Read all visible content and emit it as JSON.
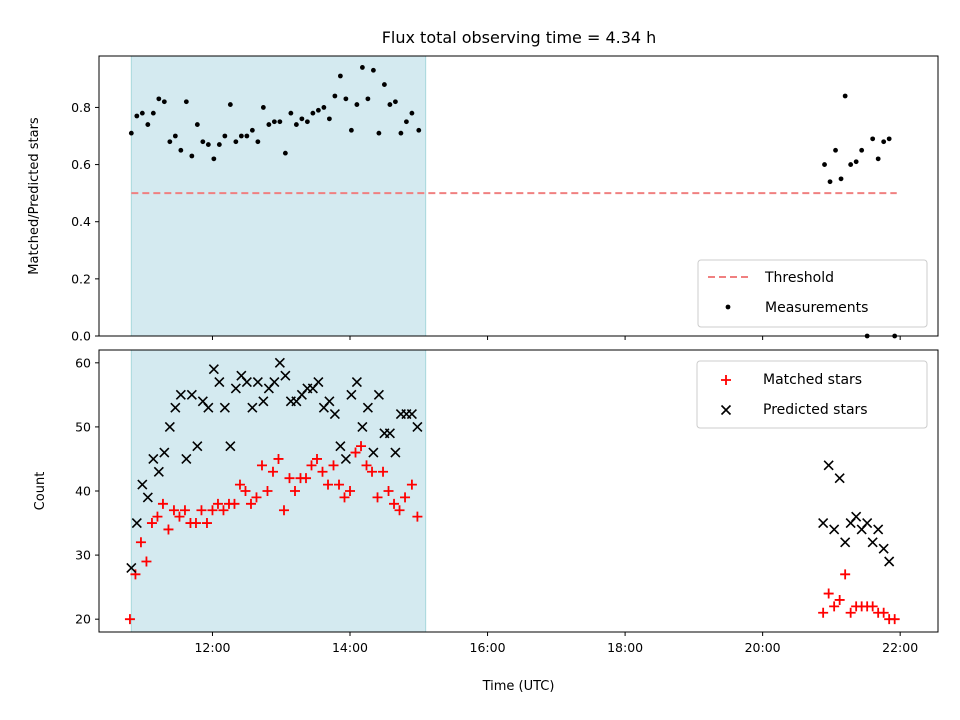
{
  "chart_data": [
    {
      "type": "scatter",
      "title": "Flux total observing time = 4.34 h",
      "xlabel": "",
      "ylabel": "Matched/Predicted stars",
      "xlim": [
        10.35,
        22.55
      ],
      "ylim": [
        0.0,
        0.98
      ],
      "yticks": [
        0.0,
        0.2,
        0.4,
        0.6,
        0.8
      ],
      "ytick_labels": [
        "0.0",
        "0.2",
        "0.4",
        "0.6",
        "0.8"
      ],
      "shaded_x_range": [
        10.82,
        15.1
      ],
      "shade_color": "#d4eaf0",
      "legend_placement": "lower right",
      "threshold": {
        "name": "Threshold",
        "value": 0.5,
        "x": [
          10.82,
          21.95
        ],
        "color": "#f08080",
        "style": "dashed"
      },
      "series": [
        {
          "name": "Measurements",
          "color": "#000000",
          "marker": "dot",
          "points": [
            [
              10.82,
              0.71
            ],
            [
              10.9,
              0.77
            ],
            [
              10.98,
              0.78
            ],
            [
              11.06,
              0.74
            ],
            [
              11.14,
              0.78
            ],
            [
              11.22,
              0.83
            ],
            [
              11.3,
              0.82
            ],
            [
              11.38,
              0.68
            ],
            [
              11.46,
              0.7
            ],
            [
              11.54,
              0.65
            ],
            [
              11.62,
              0.82
            ],
            [
              11.7,
              0.63
            ],
            [
              11.78,
              0.74
            ],
            [
              11.86,
              0.68
            ],
            [
              11.94,
              0.67
            ],
            [
              12.02,
              0.62
            ],
            [
              12.1,
              0.67
            ],
            [
              12.18,
              0.7
            ],
            [
              12.26,
              0.81
            ],
            [
              12.34,
              0.68
            ],
            [
              12.42,
              0.7
            ],
            [
              12.5,
              0.7
            ],
            [
              12.58,
              0.72
            ],
            [
              12.66,
              0.68
            ],
            [
              12.74,
              0.8
            ],
            [
              12.82,
              0.74
            ],
            [
              12.9,
              0.75
            ],
            [
              12.98,
              0.75
            ],
            [
              13.06,
              0.64
            ],
            [
              13.14,
              0.78
            ],
            [
              13.22,
              0.74
            ],
            [
              13.3,
              0.76
            ],
            [
              13.38,
              0.75
            ],
            [
              13.46,
              0.78
            ],
            [
              13.54,
              0.79
            ],
            [
              13.62,
              0.8
            ],
            [
              13.7,
              0.76
            ],
            [
              13.78,
              0.84
            ],
            [
              13.86,
              0.91
            ],
            [
              13.94,
              0.83
            ],
            [
              14.02,
              0.72
            ],
            [
              14.1,
              0.81
            ],
            [
              14.18,
              0.94
            ],
            [
              14.26,
              0.83
            ],
            [
              14.34,
              0.93
            ],
            [
              14.42,
              0.71
            ],
            [
              14.5,
              0.88
            ],
            [
              14.58,
              0.81
            ],
            [
              14.66,
              0.82
            ],
            [
              14.74,
              0.71
            ],
            [
              14.82,
              0.75
            ],
            [
              14.9,
              0.78
            ],
            [
              15.0,
              0.72
            ],
            [
              20.9,
              0.6
            ],
            [
              20.98,
              0.54
            ],
            [
              21.06,
              0.65
            ],
            [
              21.14,
              0.55
            ],
            [
              21.2,
              0.84
            ],
            [
              21.28,
              0.6
            ],
            [
              21.36,
              0.61
            ],
            [
              21.44,
              0.65
            ],
            [
              21.52,
              0.0
            ],
            [
              21.6,
              0.69
            ],
            [
              21.68,
              0.62
            ],
            [
              21.76,
              0.68
            ],
            [
              21.84,
              0.69
            ],
            [
              21.92,
              0.0
            ]
          ]
        }
      ]
    },
    {
      "type": "scatter",
      "title": "",
      "xlabel": "Time (UTC)",
      "ylabel": "Count",
      "xlim": [
        10.35,
        22.55
      ],
      "ylim": [
        18,
        62
      ],
      "yticks": [
        20,
        30,
        40,
        50,
        60
      ],
      "ytick_labels": [
        "20",
        "30",
        "40",
        "50",
        "60"
      ],
      "xticks": [
        12,
        14,
        16,
        18,
        20,
        22
      ],
      "xtick_labels": [
        "12:00",
        "14:00",
        "16:00",
        "18:00",
        "20:00",
        "22:00"
      ],
      "shaded_x_range": [
        10.82,
        15.1
      ],
      "shade_color": "#d4eaf0",
      "legend_placement": "upper right",
      "series": [
        {
          "name": "Matched stars",
          "color": "#ff0000",
          "marker": "plus",
          "points": [
            [
              10.8,
              20
            ],
            [
              10.88,
              27
            ],
            [
              10.96,
              32
            ],
            [
              11.04,
              29
            ],
            [
              11.12,
              35
            ],
            [
              11.2,
              36
            ],
            [
              11.28,
              38
            ],
            [
              11.36,
              34
            ],
            [
              11.44,
              37
            ],
            [
              11.52,
              36
            ],
            [
              11.6,
              37
            ],
            [
              11.68,
              35
            ],
            [
              11.76,
              35
            ],
            [
              11.84,
              37
            ],
            [
              11.92,
              35
            ],
            [
              12.0,
              37
            ],
            [
              12.08,
              38
            ],
            [
              12.16,
              37
            ],
            [
              12.24,
              38
            ],
            [
              12.32,
              38
            ],
            [
              12.4,
              41
            ],
            [
              12.48,
              40
            ],
            [
              12.56,
              38
            ],
            [
              12.64,
              39
            ],
            [
              12.72,
              44
            ],
            [
              12.8,
              40
            ],
            [
              12.88,
              43
            ],
            [
              12.96,
              45
            ],
            [
              13.04,
              37
            ],
            [
              13.12,
              42
            ],
            [
              13.2,
              40
            ],
            [
              13.28,
              42
            ],
            [
              13.36,
              42
            ],
            [
              13.44,
              44
            ],
            [
              13.52,
              45
            ],
            [
              13.6,
              43
            ],
            [
              13.68,
              41
            ],
            [
              13.76,
              44
            ],
            [
              13.84,
              41
            ],
            [
              13.92,
              39
            ],
            [
              14.0,
              40
            ],
            [
              14.08,
              46
            ],
            [
              14.16,
              47
            ],
            [
              14.24,
              44
            ],
            [
              14.32,
              43
            ],
            [
              14.4,
              39
            ],
            [
              14.48,
              43
            ],
            [
              14.56,
              40
            ],
            [
              14.64,
              38
            ],
            [
              14.72,
              37
            ],
            [
              14.8,
              39
            ],
            [
              14.9,
              41
            ],
            [
              14.98,
              36
            ],
            [
              20.88,
              21
            ],
            [
              20.96,
              24
            ],
            [
              21.04,
              22
            ],
            [
              21.12,
              23
            ],
            [
              21.2,
              27
            ],
            [
              21.28,
              21
            ],
            [
              21.36,
              22
            ],
            [
              21.44,
              22
            ],
            [
              21.52,
              22
            ],
            [
              21.6,
              22
            ],
            [
              21.68,
              21
            ],
            [
              21.76,
              21
            ],
            [
              21.84,
              20
            ],
            [
              21.92,
              20
            ]
          ]
        },
        {
          "name": "Predicted stars",
          "color": "#000000",
          "marker": "x",
          "points": [
            [
              10.82,
              28
            ],
            [
              10.9,
              35
            ],
            [
              10.98,
              41
            ],
            [
              11.06,
              39
            ],
            [
              11.14,
              45
            ],
            [
              11.22,
              43
            ],
            [
              11.3,
              46
            ],
            [
              11.38,
              50
            ],
            [
              11.46,
              53
            ],
            [
              11.54,
              55
            ],
            [
              11.62,
              45
            ],
            [
              11.7,
              55
            ],
            [
              11.78,
              47
            ],
            [
              11.86,
              54
            ],
            [
              11.94,
              53
            ],
            [
              12.02,
              59
            ],
            [
              12.1,
              57
            ],
            [
              12.18,
              53
            ],
            [
              12.26,
              47
            ],
            [
              12.34,
              56
            ],
            [
              12.42,
              58
            ],
            [
              12.5,
              57
            ],
            [
              12.58,
              53
            ],
            [
              12.66,
              57
            ],
            [
              12.74,
              54
            ],
            [
              12.82,
              56
            ],
            [
              12.9,
              57
            ],
            [
              12.98,
              60
            ],
            [
              13.06,
              58
            ],
            [
              13.14,
              54
            ],
            [
              13.22,
              54
            ],
            [
              13.3,
              55
            ],
            [
              13.38,
              56
            ],
            [
              13.46,
              56
            ],
            [
              13.54,
              57
            ],
            [
              13.62,
              53
            ],
            [
              13.7,
              54
            ],
            [
              13.78,
              52
            ],
            [
              13.86,
              47
            ],
            [
              13.94,
              45
            ],
            [
              14.02,
              55
            ],
            [
              14.1,
              57
            ],
            [
              14.18,
              50
            ],
            [
              14.26,
              53
            ],
            [
              14.34,
              46
            ],
            [
              14.42,
              55
            ],
            [
              14.5,
              49
            ],
            [
              14.58,
              49
            ],
            [
              14.66,
              46
            ],
            [
              14.74,
              52
            ],
            [
              14.82,
              52
            ],
            [
              14.9,
              52
            ],
            [
              14.98,
              50
            ],
            [
              20.88,
              35
            ],
            [
              20.96,
              44
            ],
            [
              21.04,
              34
            ],
            [
              21.12,
              42
            ],
            [
              21.2,
              32
            ],
            [
              21.28,
              35
            ],
            [
              21.36,
              36
            ],
            [
              21.44,
              34
            ],
            [
              21.52,
              35
            ],
            [
              21.6,
              32
            ],
            [
              21.68,
              34
            ],
            [
              21.76,
              31
            ],
            [
              21.84,
              29
            ]
          ]
        }
      ]
    }
  ]
}
